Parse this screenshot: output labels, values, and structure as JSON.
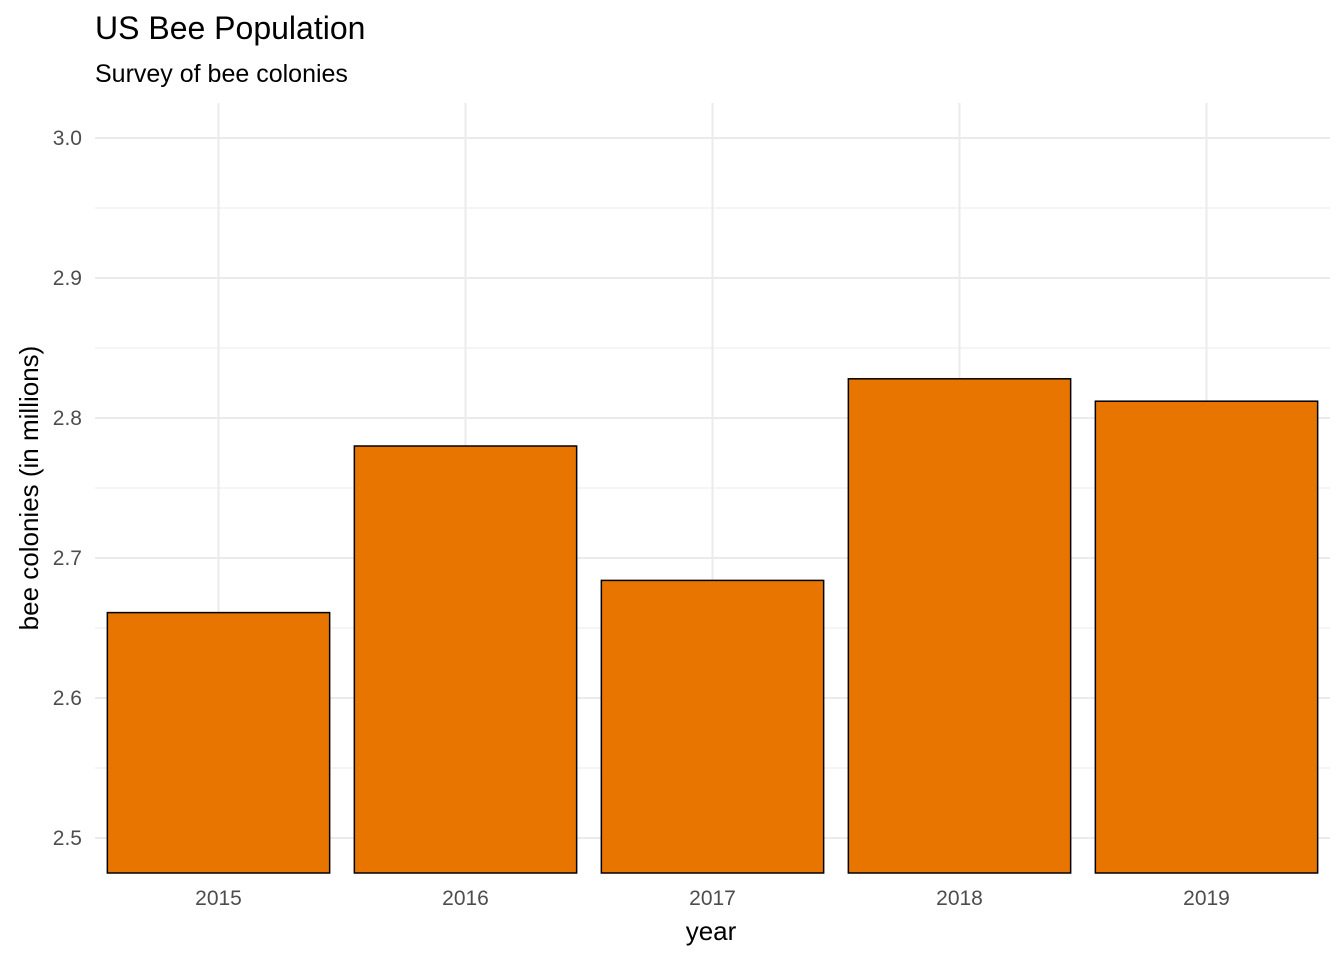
{
  "chart_data": {
    "type": "bar",
    "title": "US Bee Population",
    "subtitle": "Survey of bee colonies",
    "xlabel": "year",
    "ylabel": "bee colonies (in millions)",
    "categories": [
      "2015",
      "2016",
      "2017",
      "2018",
      "2019"
    ],
    "values": [
      2.661,
      2.78,
      2.684,
      2.828,
      2.812
    ],
    "yticks": [
      "2.5",
      "2.6",
      "2.7",
      "2.8",
      "2.9",
      "3.0"
    ],
    "ylim": [
      2.475,
      3.025
    ],
    "grid": true,
    "legend": "none",
    "bar_color": "#E87500",
    "bar_outline": "#000000",
    "grid_color": "#EBEBEB"
  }
}
